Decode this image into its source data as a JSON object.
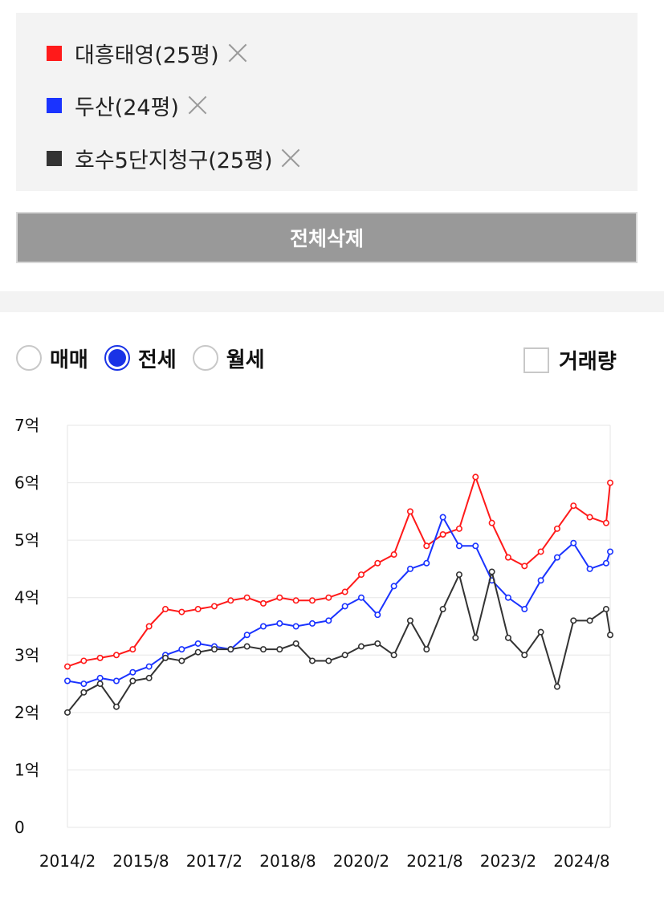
{
  "legend": {
    "items": [
      {
        "label": "대흥태영(25평)",
        "color": "#ff1a1a"
      },
      {
        "label": "두산(24평)",
        "color": "#1a33ff"
      },
      {
        "label": "호수5단지청구(25평)",
        "color": "#333333"
      }
    ],
    "remove_icon": "close-icon"
  },
  "delete_all_label": "전체삭제",
  "trade_type": {
    "options": [
      "매매",
      "전세",
      "월세"
    ],
    "selected": "전세"
  },
  "volume_label": "거래량",
  "volume_checked": false,
  "chart_data": {
    "type": "line",
    "title": "",
    "xlabel": "",
    "ylabel": "",
    "x_ticks": [
      "2014/2",
      "2015/8",
      "2017/2",
      "2018/8",
      "2020/2",
      "2021/8",
      "2023/2",
      "2024/8"
    ],
    "y_ticks": [
      "0",
      "1억",
      "2억",
      "3억",
      "4억",
      "5억",
      "6억",
      "7억"
    ],
    "ylim": [
      0,
      7
    ],
    "xlim": [
      "2014/2",
      "2025/3"
    ],
    "y_unit": "억",
    "grid": true,
    "markers": "hollow-circle",
    "series": [
      {
        "name": "대흥태영(25평)",
        "color": "#ff1a1a",
        "points": [
          [
            "2014/2",
            2.8
          ],
          [
            "2014/6",
            2.9
          ],
          [
            "2014/10",
            2.95
          ],
          [
            "2015/2",
            3.0
          ],
          [
            "2015/6",
            3.1
          ],
          [
            "2015/10",
            3.5
          ],
          [
            "2016/2",
            3.8
          ],
          [
            "2016/6",
            3.75
          ],
          [
            "2016/10",
            3.8
          ],
          [
            "2017/2",
            3.85
          ],
          [
            "2017/6",
            3.95
          ],
          [
            "2017/10",
            4.0
          ],
          [
            "2018/2",
            3.9
          ],
          [
            "2018/6",
            4.0
          ],
          [
            "2018/10",
            3.95
          ],
          [
            "2019/2",
            3.95
          ],
          [
            "2019/6",
            4.0
          ],
          [
            "2019/10",
            4.1
          ],
          [
            "2020/2",
            4.4
          ],
          [
            "2020/6",
            4.6
          ],
          [
            "2020/10",
            4.75
          ],
          [
            "2021/2",
            5.5
          ],
          [
            "2021/6",
            4.9
          ],
          [
            "2021/10",
            5.1
          ],
          [
            "2022/2",
            5.2
          ],
          [
            "2022/6",
            6.1
          ],
          [
            "2022/10",
            5.3
          ],
          [
            "2023/2",
            4.7
          ],
          [
            "2023/6",
            4.55
          ],
          [
            "2023/10",
            4.8
          ],
          [
            "2024/2",
            5.2
          ],
          [
            "2024/6",
            5.6
          ],
          [
            "2024/10",
            5.4
          ],
          [
            "2025/2",
            5.3
          ],
          [
            "2025/3",
            6.0
          ]
        ]
      },
      {
        "name": "두산(24평)",
        "color": "#1a33ff",
        "points": [
          [
            "2014/2",
            2.55
          ],
          [
            "2014/6",
            2.5
          ],
          [
            "2014/10",
            2.6
          ],
          [
            "2015/2",
            2.55
          ],
          [
            "2015/6",
            2.7
          ],
          [
            "2015/10",
            2.8
          ],
          [
            "2016/2",
            3.0
          ],
          [
            "2016/6",
            3.1
          ],
          [
            "2016/10",
            3.2
          ],
          [
            "2017/2",
            3.15
          ],
          [
            "2017/6",
            3.1
          ],
          [
            "2017/10",
            3.35
          ],
          [
            "2018/2",
            3.5
          ],
          [
            "2018/6",
            3.55
          ],
          [
            "2018/10",
            3.5
          ],
          [
            "2019/2",
            3.55
          ],
          [
            "2019/6",
            3.6
          ],
          [
            "2019/10",
            3.85
          ],
          [
            "2020/2",
            4.0
          ],
          [
            "2020/6",
            3.7
          ],
          [
            "2020/10",
            4.2
          ],
          [
            "2021/2",
            4.5
          ],
          [
            "2021/6",
            4.6
          ],
          [
            "2021/10",
            5.4
          ],
          [
            "2022/2",
            4.9
          ],
          [
            "2022/6",
            4.9
          ],
          [
            "2022/10",
            4.3
          ],
          [
            "2023/2",
            4.0
          ],
          [
            "2023/6",
            3.8
          ],
          [
            "2023/10",
            4.3
          ],
          [
            "2024/2",
            4.7
          ],
          [
            "2024/6",
            4.95
          ],
          [
            "2024/10",
            4.5
          ],
          [
            "2025/2",
            4.6
          ],
          [
            "2025/3",
            4.8
          ]
        ]
      },
      {
        "name": "호수5단지청구(25평)",
        "color": "#333333",
        "points": [
          [
            "2014/2",
            2.0
          ],
          [
            "2014/6",
            2.35
          ],
          [
            "2014/10",
            2.5
          ],
          [
            "2015/2",
            2.1
          ],
          [
            "2015/6",
            2.55
          ],
          [
            "2015/10",
            2.6
          ],
          [
            "2016/2",
            2.95
          ],
          [
            "2016/6",
            2.9
          ],
          [
            "2016/10",
            3.05
          ],
          [
            "2017/2",
            3.1
          ],
          [
            "2017/6",
            3.1
          ],
          [
            "2017/10",
            3.15
          ],
          [
            "2018/2",
            3.1
          ],
          [
            "2018/6",
            3.1
          ],
          [
            "2018/10",
            3.2
          ],
          [
            "2019/2",
            2.9
          ],
          [
            "2019/6",
            2.9
          ],
          [
            "2019/10",
            3.0
          ],
          [
            "2020/2",
            3.15
          ],
          [
            "2020/6",
            3.2
          ],
          [
            "2020/10",
            3.0
          ],
          [
            "2021/2",
            3.6
          ],
          [
            "2021/6",
            3.1
          ],
          [
            "2021/10",
            3.8
          ],
          [
            "2022/2",
            4.4
          ],
          [
            "2022/6",
            3.3
          ],
          [
            "2022/10",
            4.45
          ],
          [
            "2023/2",
            3.3
          ],
          [
            "2023/6",
            3.0
          ],
          [
            "2023/10",
            3.4
          ],
          [
            "2024/2",
            2.45
          ],
          [
            "2024/6",
            3.6
          ],
          [
            "2024/10",
            3.6
          ],
          [
            "2025/2",
            3.8
          ],
          [
            "2025/3",
            3.35
          ]
        ]
      }
    ]
  }
}
